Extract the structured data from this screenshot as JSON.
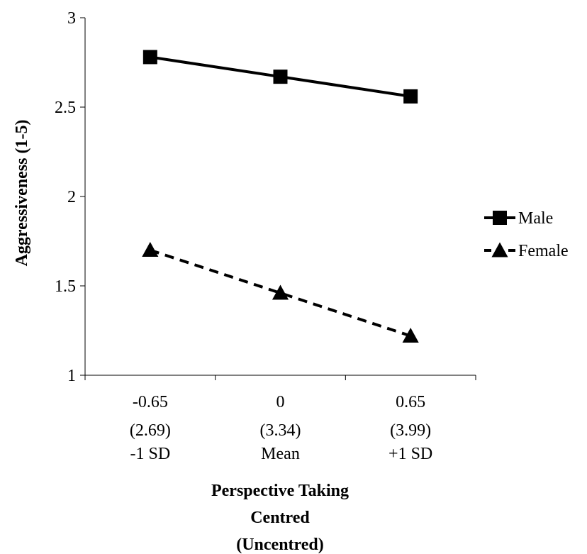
{
  "chart_data": {
    "type": "line",
    "xlabel": [
      "Perspective Taking",
      "Centred",
      "(Uncentred)"
    ],
    "ylabel": "Aggressiveness (1-5)",
    "ylim": [
      1,
      3
    ],
    "yticks": [
      "1",
      "1.5",
      "2",
      "2.5",
      "3"
    ],
    "categories": [
      [
        "-0.65",
        "(2.69)",
        "-1 SD"
      ],
      [
        "0",
        "(3.34)",
        "Mean"
      ],
      [
        "0.65",
        "(3.99)",
        "+1 SD"
      ]
    ],
    "series": [
      {
        "name": "Male",
        "values": [
          2.78,
          2.67,
          2.56
        ],
        "line": "solid",
        "marker": "square",
        "color": "#000000"
      },
      {
        "name": "Female",
        "values": [
          1.7,
          1.46,
          1.22
        ],
        "line": "dashed",
        "marker": "triangle",
        "color": "#000000"
      }
    ],
    "legend": "right",
    "grid": false
  }
}
